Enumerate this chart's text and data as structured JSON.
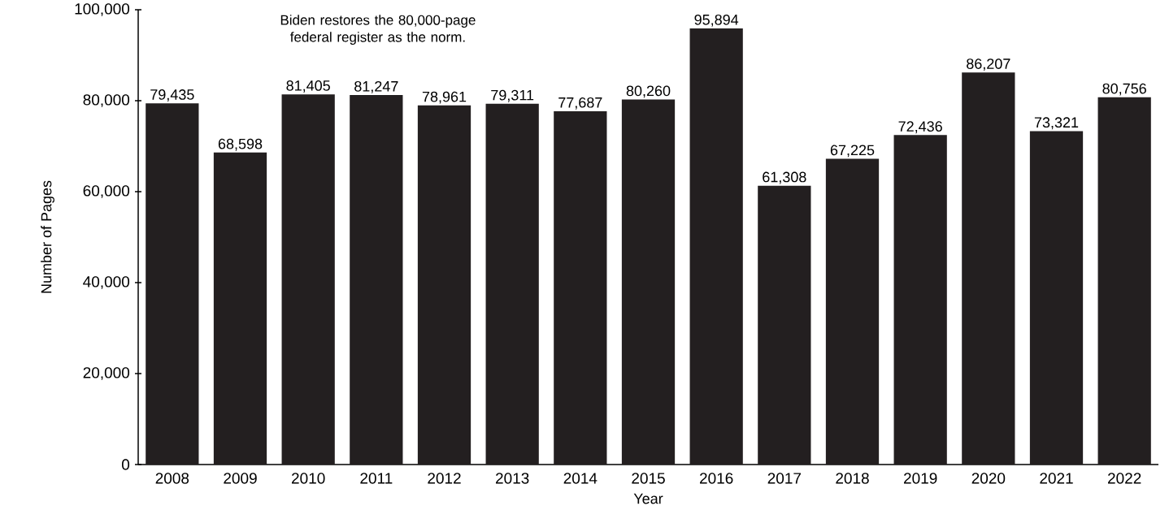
{
  "chart_data": {
    "type": "bar",
    "xlabel": "Year",
    "ylabel": "Number of Pages",
    "annotations": [
      "Biden restores the 80,000-page federal register as the norm."
    ],
    "categories": [
      "2008",
      "2009",
      "2010",
      "2011",
      "2012",
      "2013",
      "2014",
      "2015",
      "2016",
      "2017",
      "2018",
      "2019",
      "2020",
      "2021",
      "2022"
    ],
    "values": [
      79435,
      68598,
      81405,
      81247,
      78961,
      79311,
      77687,
      80260,
      95894,
      61308,
      67225,
      72436,
      86207,
      73321,
      80756
    ],
    "value_labels": [
      "79,435",
      "68,598",
      "81,405",
      "81,247",
      "78,961",
      "79,311",
      "77,687",
      "80,260",
      "95,894",
      "61,308",
      "67,225",
      "72,436",
      "86,207",
      "73,321",
      "80,756"
    ],
    "color": "#231f20",
    "ylim": [
      0,
      100000
    ],
    "yticks": [
      0,
      {
        "value": 20000,
        "label": "20,000"
      },
      {
        "value": 40000,
        "label": "40,000"
      },
      {
        "value": 60000,
        "label": "60,000"
      },
      {
        "value": 80000,
        "label": "80,000"
      },
      {
        "value": 100000,
        "label": "100,000"
      }
    ]
  }
}
